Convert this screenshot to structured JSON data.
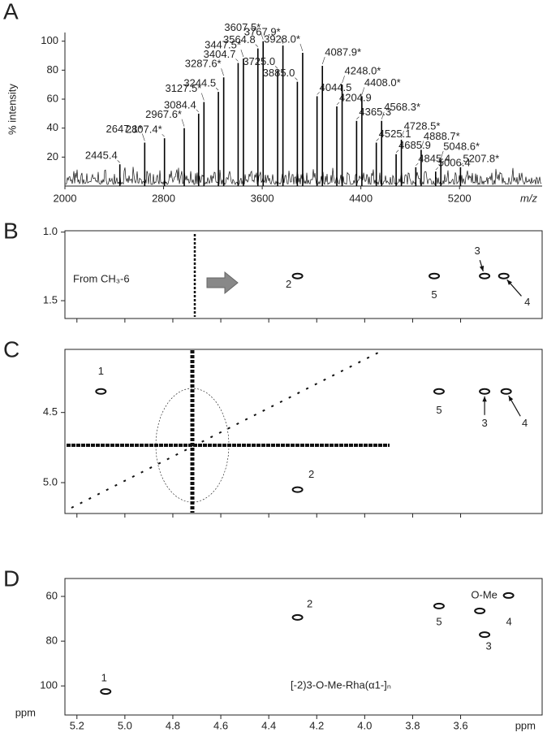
{
  "chart_data": [
    {
      "type": "spectrum",
      "panel": "A",
      "xlabel": "m/z",
      "ylabel": "% intensity",
      "xlim": [
        2000,
        5870
      ],
      "xticks": [
        2000,
        2800,
        3600,
        4400,
        5200
      ],
      "ylim": [
        0,
        106
      ],
      "yticks": [
        20,
        40,
        60,
        80,
        100
      ],
      "color": "#000000",
      "x": [
        2445.4,
        2647.1,
        2807.4,
        2967.6,
        3084.4,
        3127.5,
        3244.5,
        3287.6,
        3404.7,
        3447.5,
        3564.8,
        3607.5,
        3725.0,
        3767.9,
        3885.0,
        3928.0,
        4044.5,
        4087.9,
        4204.9,
        4248.0,
        4365.3,
        4408.0,
        4525.1,
        4568.3,
        4685.9,
        4728.5,
        4845.4,
        4888.7,
        5006.4,
        5048.6,
        5207.8
      ],
      "x_labels": [
        "2445.4",
        "2647.1*",
        "2807.4*",
        "2967.6*",
        "3084.4",
        "3127.5*",
        "3244.5",
        "3287.6*",
        "3404.7",
        "3447.5*",
        "3564.8",
        "3607.5*",
        "3725.0",
        "3767.9*",
        "3885.0",
        "3928.0*",
        "4044.5",
        "4087.9*",
        "4204.9",
        "4248.0*",
        "4365.3",
        "4408.0*",
        "4525.1",
        "4568.3*",
        "4685.9",
        "4728.5*",
        "4845.4",
        "4888.7*",
        "5006.4",
        "5048.6*",
        "5207.8*"
      ],
      "values": [
        15,
        30,
        33,
        40,
        50,
        58,
        65,
        75,
        85,
        88,
        95,
        100,
        80,
        97,
        72,
        92,
        62,
        83,
        55,
        70,
        45,
        62,
        30,
        45,
        22,
        32,
        13,
        25,
        10,
        18,
        13
      ]
    },
    {
      "type": "contour",
      "panel": "B",
      "annotation": "From CH₃-6",
      "xlim": [
        5.25,
        3.26
      ],
      "xticks": [
        5.2,
        {
          "value": 5,
          "label": "5.0"
        },
        4.8,
        4.6,
        4.4,
        4.2,
        {
          "value": 4,
          "label": "4.0"
        },
        3.8,
        3.6
      ],
      "ylim": [
        0.99,
        1.63
      ],
      "yticks": [
        {
          "value": 1,
          "label": "1.0"
        },
        1.5
      ],
      "peaks": {
        "labels": [
          "2",
          "5",
          "3",
          "4"
        ],
        "x": [
          4.28,
          3.71,
          3.5,
          3.42
        ],
        "y": [
          1.32,
          1.32,
          1.32,
          1.32
        ]
      }
    },
    {
      "type": "contour",
      "panel": "C",
      "xlim": [
        5.25,
        3.26
      ],
      "xticks": [
        5.2,
        {
          "value": 5,
          "label": "5.0"
        },
        4.8,
        4.6,
        4.4,
        4.2,
        {
          "value": 4,
          "label": "4.0"
        },
        3.8,
        3.6
      ],
      "ylim": [
        4.05,
        5.22
      ],
      "yticks": [
        4.5,
        {
          "value": 5,
          "label": "5.0"
        }
      ],
      "peaks": {
        "labels": [
          "1",
          "5",
          "3",
          "4",
          "2"
        ],
        "x": [
          5.1,
          3.69,
          3.5,
          3.41,
          4.28
        ],
        "y": [
          4.35,
          4.35,
          4.35,
          4.35,
          5.05
        ]
      }
    },
    {
      "type": "contour",
      "panel": "D",
      "xlabel": "ppm",
      "ylabel": "ppm",
      "annotation": "[-2)3-O-Me-Rha(α1-]ₙ",
      "xlim": [
        5.25,
        3.26
      ],
      "xticks": [
        5.2,
        {
          "value": 5,
          "label": "5.0"
        },
        4.8,
        4.6,
        4.4,
        4.2,
        {
          "value": 4,
          "label": "4.0"
        },
        3.8,
        3.6
      ],
      "ylim": [
        52,
        113
      ],
      "yticks": [
        60,
        80,
        100
      ],
      "peaks": {
        "labels": [
          "O-Me",
          "2",
          "5",
          "4",
          "3",
          "1"
        ],
        "x": [
          3.4,
          4.28,
          3.69,
          3.52,
          3.5,
          5.08
        ],
        "y": [
          59.6,
          69.4,
          64.3,
          66.5,
          77.1,
          102.5
        ]
      }
    }
  ]
}
